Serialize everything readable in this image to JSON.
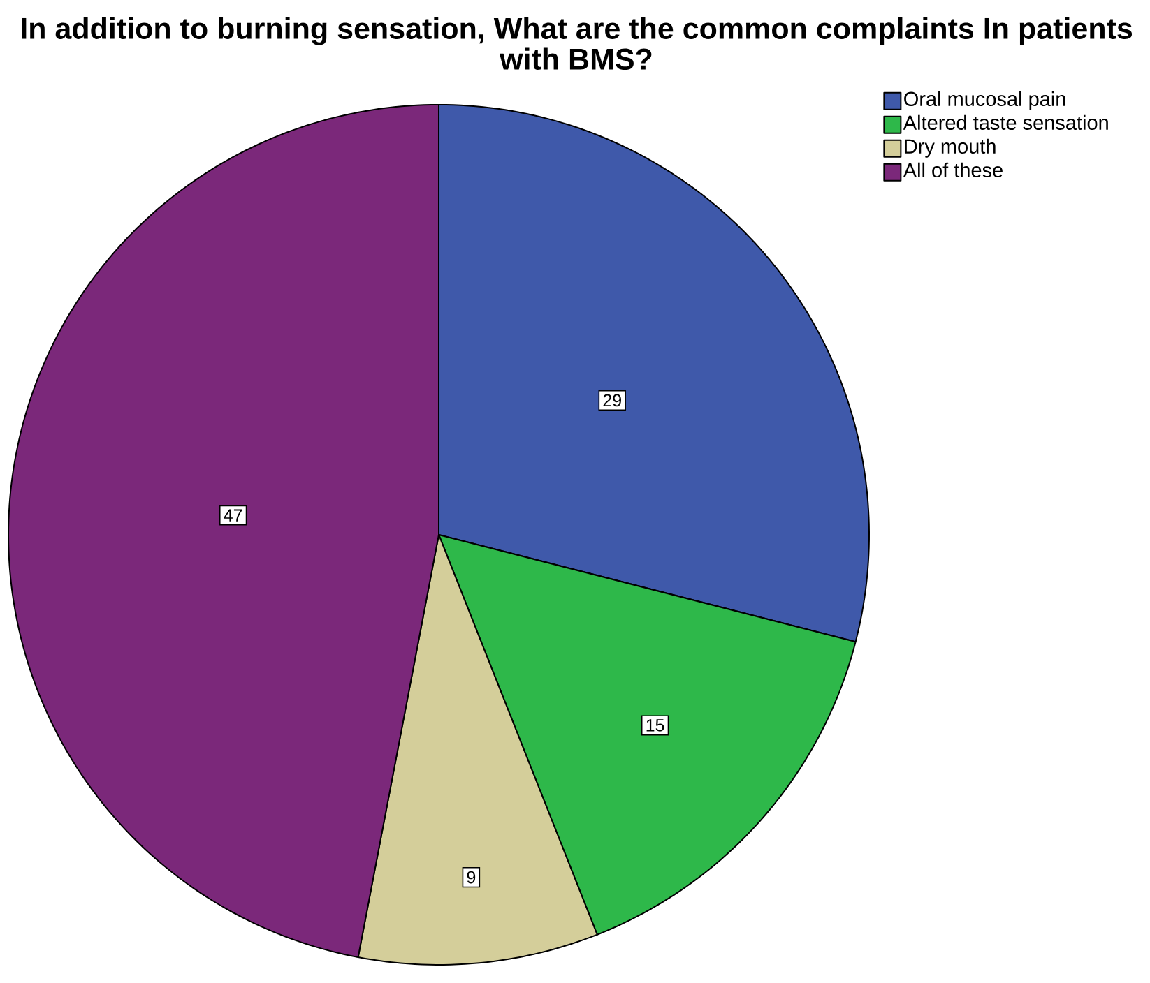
{
  "chart_data": {
    "type": "pie",
    "title": "In addition to burning sensation, What are the common complaints In patients with BMS?",
    "categories": [
      "Oral mucosal pain",
      "Altered taste sensation",
      "Dry mouth",
      "All of these"
    ],
    "values": [
      29,
      15,
      9,
      47
    ],
    "colors": [
      "#3f59aa",
      "#2eb84a",
      "#d4ce9a",
      "#7b287a"
    ],
    "data_labels": true,
    "legend": "top right"
  }
}
